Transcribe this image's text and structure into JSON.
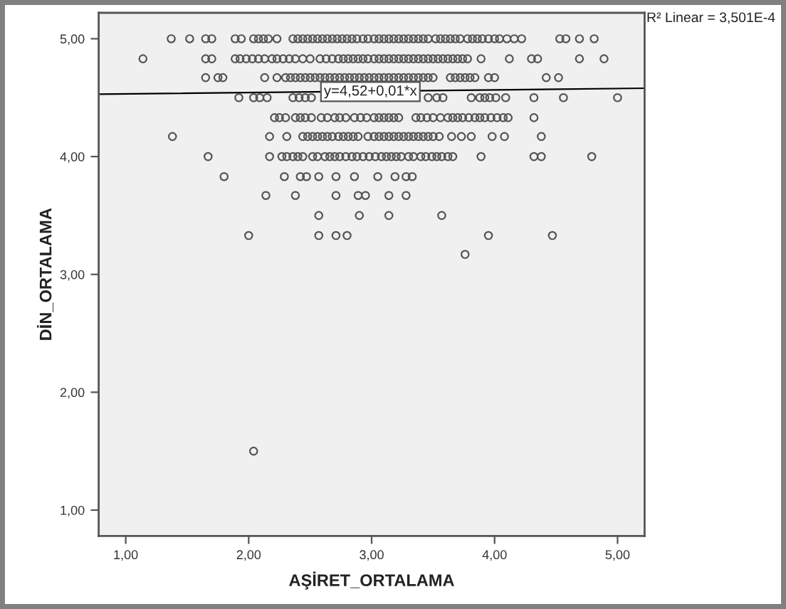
{
  "chart_data": {
    "type": "scatter",
    "xlabel": "AŞİRET_ORTALAMA",
    "ylabel": "DİN_ORTALAMA",
    "marker": "circle",
    "xlim": [
      0.78,
      5.22
    ],
    "ylim": [
      0.78,
      5.22
    ],
    "xticks": [
      {
        "value": 1,
        "label": "1,00"
      },
      {
        "value": 2,
        "label": "2,00"
      },
      {
        "value": 3,
        "label": "3,00"
      },
      {
        "value": 4,
        "label": "4,00"
      },
      {
        "value": 5,
        "label": "5,00"
      }
    ],
    "yticks": [
      {
        "value": 1,
        "label": "1,00"
      },
      {
        "value": 2,
        "label": "2,00"
      },
      {
        "value": 3,
        "label": "3,00"
      },
      {
        "value": 4,
        "label": "4,00"
      },
      {
        "value": 5,
        "label": "5,00"
      }
    ],
    "annotations": [
      {
        "text": "y=4,52+0,01*x",
        "x": 2.99,
        "y": 4.55
      },
      "R² Linear = 3,501E-4"
    ],
    "series": [
      {
        "color": "#555555",
        "x": [
          1.37,
          1.52,
          1.65,
          1.7,
          1.89,
          1.94,
          2.04,
          2.08,
          2.12,
          2.16,
          2.23,
          2.36,
          2.4,
          2.44,
          2.48,
          2.52,
          2.56,
          2.6,
          2.64,
          2.68,
          2.72,
          2.76,
          2.8,
          2.84,
          2.88,
          2.93,
          2.97,
          3.02,
          3.06,
          3.1,
          3.14,
          3.18,
          3.22,
          3.26,
          3.3,
          3.34,
          3.38,
          3.42,
          3.46,
          3.52,
          3.56,
          3.6,
          3.64,
          3.68,
          3.72,
          3.78,
          3.82,
          3.86,
          3.9,
          3.95,
          4,
          4.04,
          4.1,
          4.16,
          4.22,
          4.53,
          4.58,
          4.69,
          4.81,
          1.14,
          1.65,
          1.7,
          1.89,
          1.93,
          1.98,
          2.03,
          2.08,
          2.13,
          2.19,
          2.23,
          2.28,
          2.33,
          2.38,
          2.44,
          2.5,
          2.58,
          2.63,
          2.68,
          2.73,
          2.77,
          2.81,
          2.85,
          2.89,
          2.93,
          2.97,
          3.02,
          3.06,
          3.1,
          3.14,
          3.18,
          3.22,
          3.26,
          3.3,
          3.34,
          3.38,
          3.42,
          3.46,
          3.5,
          3.54,
          3.58,
          3.62,
          3.66,
          3.7,
          3.74,
          3.78,
          3.89,
          4.12,
          4.3,
          4.35,
          4.69,
          4.89,
          1.65,
          1.75,
          1.79,
          2.13,
          2.23,
          2.3,
          2.34,
          2.38,
          2.42,
          2.46,
          2.5,
          2.54,
          2.58,
          2.62,
          2.66,
          2.7,
          2.74,
          2.78,
          2.82,
          2.86,
          2.9,
          2.94,
          2.98,
          3.02,
          3.06,
          3.1,
          3.14,
          3.18,
          3.22,
          3.26,
          3.3,
          3.34,
          3.38,
          3.42,
          3.46,
          3.5,
          3.64,
          3.68,
          3.72,
          3.76,
          3.8,
          3.84,
          3.95,
          4,
          4.42,
          4.52,
          1.92,
          2.04,
          2.09,
          2.15,
          2.36,
          2.41,
          2.46,
          2.51,
          3.46,
          3.53,
          3.58,
          3.81,
          3.88,
          3.92,
          3.96,
          4.01,
          4.09,
          4.32,
          4.56,
          5,
          2.21,
          2.25,
          2.3,
          2.38,
          2.42,
          2.46,
          2.51,
          2.59,
          2.64,
          2.7,
          2.74,
          2.79,
          2.86,
          2.91,
          2.96,
          3.02,
          3.06,
          3.1,
          3.14,
          3.18,
          3.22,
          3.36,
          3.4,
          3.45,
          3.5,
          3.56,
          3.62,
          3.66,
          3.7,
          3.74,
          3.79,
          3.84,
          3.88,
          3.92,
          3.97,
          4.02,
          4.07,
          4.11,
          4.32,
          1.38,
          2.17,
          2.31,
          2.44,
          2.48,
          2.52,
          2.56,
          2.6,
          2.64,
          2.68,
          2.73,
          2.77,
          2.81,
          2.85,
          2.89,
          2.97,
          3.02,
          3.06,
          3.1,
          3.14,
          3.18,
          3.22,
          3.26,
          3.3,
          3.34,
          3.38,
          3.42,
          3.46,
          3.5,
          3.55,
          3.65,
          3.73,
          3.81,
          3.98,
          4.08,
          4.38,
          1.67,
          2.17,
          2.27,
          2.31,
          2.36,
          2.4,
          2.44,
          2.52,
          2.56,
          2.62,
          2.66,
          2.7,
          2.74,
          2.79,
          2.84,
          2.88,
          2.93,
          2.98,
          3.03,
          3.08,
          3.12,
          3.16,
          3.2,
          3.24,
          3.3,
          3.34,
          3.4,
          3.44,
          3.49,
          3.53,
          3.57,
          3.62,
          3.66,
          3.89,
          4.32,
          4.38,
          4.79,
          1.8,
          2.29,
          2.42,
          2.47,
          2.57,
          2.71,
          2.86,
          3.05,
          3.19,
          3.28,
          3.33,
          2.14,
          2.38,
          2.71,
          2.89,
          2.95,
          3.14,
          3.28,
          2.57,
          2.9,
          3.14,
          3.57,
          2,
          2.57,
          2.71,
          2.8,
          3.95,
          4.47,
          3.76,
          2.04
        ],
        "values": [
          5,
          5,
          5,
          5,
          5,
          5,
          5,
          5,
          5,
          5,
          5,
          5,
          5,
          5,
          5,
          5,
          5,
          5,
          5,
          5,
          5,
          5,
          5,
          5,
          5,
          5,
          5,
          5,
          5,
          5,
          5,
          5,
          5,
          5,
          5,
          5,
          5,
          5,
          5,
          5,
          5,
          5,
          5,
          5,
          5,
          5,
          5,
          5,
          5,
          5,
          5,
          5,
          5,
          5,
          5,
          5,
          5,
          5,
          5,
          4.83,
          4.83,
          4.83,
          4.83,
          4.83,
          4.83,
          4.83,
          4.83,
          4.83,
          4.83,
          4.83,
          4.83,
          4.83,
          4.83,
          4.83,
          4.83,
          4.83,
          4.83,
          4.83,
          4.83,
          4.83,
          4.83,
          4.83,
          4.83,
          4.83,
          4.83,
          4.83,
          4.83,
          4.83,
          4.83,
          4.83,
          4.83,
          4.83,
          4.83,
          4.83,
          4.83,
          4.83,
          4.83,
          4.83,
          4.83,
          4.83,
          4.83,
          4.83,
          4.83,
          4.83,
          4.83,
          4.83,
          4.83,
          4.83,
          4.83,
          4.83,
          4.83,
          4.67,
          4.67,
          4.67,
          4.67,
          4.67,
          4.67,
          4.67,
          4.67,
          4.67,
          4.67,
          4.67,
          4.67,
          4.67,
          4.67,
          4.67,
          4.67,
          4.67,
          4.67,
          4.67,
          4.67,
          4.67,
          4.67,
          4.67,
          4.67,
          4.67,
          4.67,
          4.67,
          4.67,
          4.67,
          4.67,
          4.67,
          4.67,
          4.67,
          4.67,
          4.67,
          4.67,
          4.67,
          4.67,
          4.67,
          4.67,
          4.67,
          4.67,
          4.67,
          4.67,
          4.67,
          4.67,
          4.5,
          4.5,
          4.5,
          4.5,
          4.5,
          4.5,
          4.5,
          4.5,
          4.5,
          4.5,
          4.5,
          4.5,
          4.5,
          4.5,
          4.5,
          4.5,
          4.5,
          4.5,
          4.5,
          4.5,
          4.33,
          4.33,
          4.33,
          4.33,
          4.33,
          4.33,
          4.33,
          4.33,
          4.33,
          4.33,
          4.33,
          4.33,
          4.33,
          4.33,
          4.33,
          4.33,
          4.33,
          4.33,
          4.33,
          4.33,
          4.33,
          4.33,
          4.33,
          4.33,
          4.33,
          4.33,
          4.33,
          4.33,
          4.33,
          4.33,
          4.33,
          4.33,
          4.33,
          4.33,
          4.33,
          4.33,
          4.33,
          4.33,
          4.33,
          4.17,
          4.17,
          4.17,
          4.17,
          4.17,
          4.17,
          4.17,
          4.17,
          4.17,
          4.17,
          4.17,
          4.17,
          4.17,
          4.17,
          4.17,
          4.17,
          4.17,
          4.17,
          4.17,
          4.17,
          4.17,
          4.17,
          4.17,
          4.17,
          4.17,
          4.17,
          4.17,
          4.17,
          4.17,
          4.17,
          4.17,
          4.17,
          4.17,
          4.17,
          4.17,
          4.17,
          4,
          4,
          4,
          4,
          4,
          4,
          4,
          4,
          4,
          4,
          4,
          4,
          4,
          4,
          4,
          4,
          4,
          4,
          4,
          4,
          4,
          4,
          4,
          4,
          4,
          4,
          4,
          4,
          4,
          4,
          4,
          4,
          4,
          4,
          4,
          4,
          4,
          3.83,
          3.83,
          3.83,
          3.83,
          3.83,
          3.83,
          3.83,
          3.83,
          3.83,
          3.83,
          3.83,
          3.67,
          3.67,
          3.67,
          3.67,
          3.67,
          3.67,
          3.67,
          3.5,
          3.5,
          3.5,
          3.5,
          3.33,
          3.33,
          3.33,
          3.33,
          3.33,
          3.33,
          3.17,
          1.5
        ]
      },
      {
        "type": "line",
        "color": "#000000",
        "marker": "none",
        "line_style": "solid",
        "x": [
          0.78,
          5.22
        ],
        "values": [
          4.53,
          4.58
        ]
      }
    ]
  }
}
